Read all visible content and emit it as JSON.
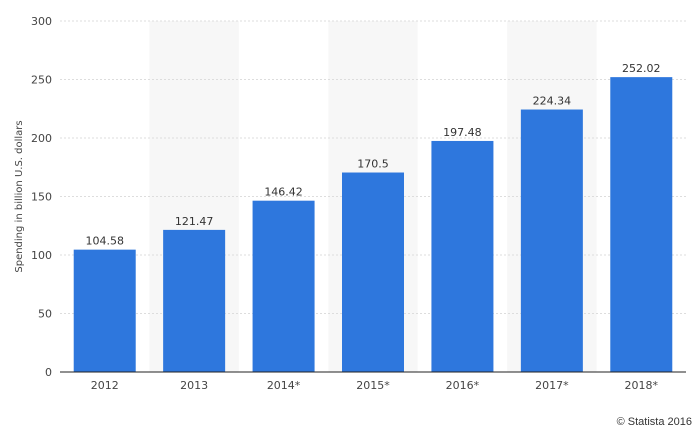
{
  "colors": {
    "bar": "#2e77dd",
    "band": "#f7f7f7",
    "grid": "#dddddd",
    "axis": "#222222",
    "tick_text": "#444444",
    "label_text": "#333333"
  },
  "credit": "© Statista 2016",
  "chart_data": {
    "type": "bar",
    "title": "",
    "xlabel": "",
    "ylabel": "Spending in billion U.S. dollars",
    "categories": [
      "2012",
      "2013",
      "2014*",
      "2015*",
      "2016*",
      "2017*",
      "2018*"
    ],
    "values": [
      104.58,
      121.47,
      146.42,
      170.5,
      197.48,
      224.34,
      252.02
    ],
    "value_labels": [
      "104.58",
      "121.47",
      "146.42",
      "170.5",
      "197.48",
      "224.34",
      "252.02"
    ],
    "ylim": [
      0,
      300
    ],
    "yticks": [
      0,
      50,
      100,
      150,
      200,
      250,
      300
    ],
    "ytick_labels": [
      "0",
      "50",
      "100",
      "150",
      "200",
      "250",
      "300"
    ],
    "grid": true,
    "grid_style": "dashed",
    "alternating_column_bands": true
  }
}
